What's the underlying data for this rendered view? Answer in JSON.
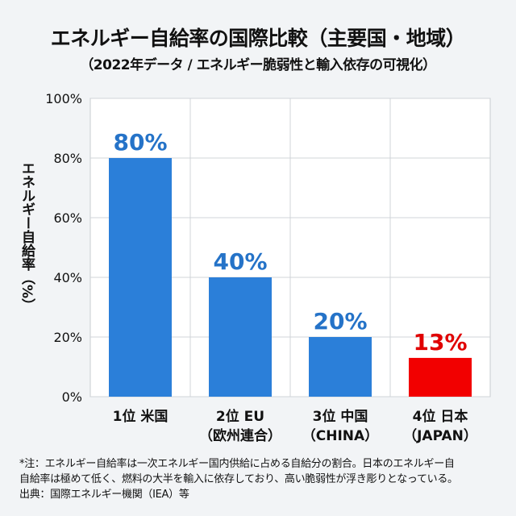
{
  "title": "エネルギー自給率の国際比較（主要国・地域）",
  "subtitle": "（2022年データ / エネルギー脆弱性と輸入依存の可視化）",
  "chart_data": {
    "type": "bar",
    "title": "エネルギー自給率の国際比較（主要国・地域）",
    "subtitle": "（2022年データ / エネルギー脆弱性と輸入依存の可視化）",
    "xlabel": "",
    "ylabel": "エネルギー自給率（%）",
    "ylim": [
      0,
      100
    ],
    "yticks": [
      "0%",
      "20%",
      "40%",
      "60%",
      "80%",
      "100%"
    ],
    "grid": true,
    "categories": [
      {
        "line1": "1位 米国",
        "line2": ""
      },
      {
        "line1": "2位 EU",
        "line2": "（欧州連合）"
      },
      {
        "line1": "3位 中国",
        "line2": "（CHINA）"
      },
      {
        "line1": "4位 日本",
        "line2": "（JAPAN）"
      }
    ],
    "values": [
      80,
      40,
      20,
      13
    ],
    "data_labels": [
      "80%",
      "40%",
      "20%",
      "13%"
    ],
    "colors": [
      "#2b7fd9",
      "#2b7fd9",
      "#2b7fd9",
      "#f20000"
    ],
    "label_colors": [
      "#2573c8",
      "#2573c8",
      "#2573c8",
      "#e00000"
    ]
  },
  "notes": [
    "*注：エネルギー自給率は一次エネルギー国内供給に占める自給分の割合。日本のエネルギー自",
    "自給率は極めて低く、燃料の大半を輸入に依存しており、高い脆弱性が浮き彫りとなっている。",
    "出典：国際エネルギー機関（IEA）等"
  ]
}
